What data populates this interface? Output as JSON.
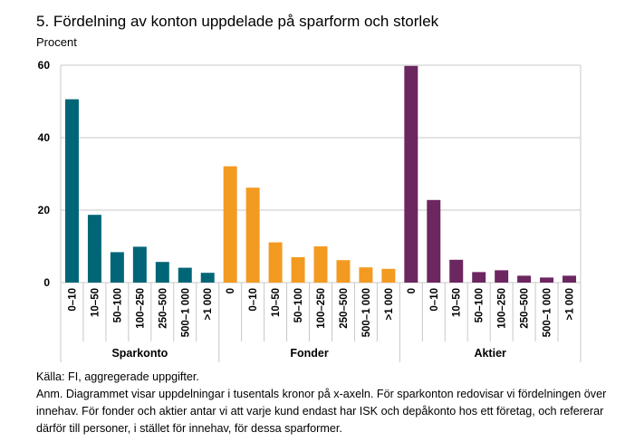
{
  "title": "5. Fördelning av konton uppdelade på sparform och storlek",
  "chart_data": {
    "type": "bar",
    "title": "5. Fördelning av konton uppdelade på sparform och storlek",
    "ylabel": "Procent",
    "ylim": [
      0,
      60
    ],
    "yticks": [
      0,
      20,
      40,
      60
    ],
    "grid": true,
    "groups": [
      {
        "name": "Sparkonto",
        "color": "#006677",
        "categories": [
          "0–10",
          "10–50",
          "50–100",
          "100–250",
          "250–500",
          "500–1 000",
          ">1 000"
        ],
        "values": [
          50.6,
          18.7,
          8.4,
          9.9,
          5.7,
          4.1,
          2.7
        ]
      },
      {
        "name": "Fonder",
        "color": "#F39A21",
        "categories": [
          "0",
          "0–10",
          "10–50",
          "50–100",
          "100–250",
          "250–500",
          "500–1 000",
          ">1 000"
        ],
        "values": [
          32.1,
          26.2,
          11.1,
          7.0,
          10.0,
          6.2,
          4.2,
          3.8
        ]
      },
      {
        "name": "Aktier",
        "color": "#6C2660",
        "categories": [
          "0",
          "0–10",
          "10–50",
          "50–100",
          "100–250",
          "250–500",
          "500–1 000",
          ">1 000"
        ],
        "values": [
          59.8,
          22.8,
          6.3,
          2.9,
          3.4,
          1.9,
          1.4,
          1.9
        ]
      }
    ]
  },
  "notes": {
    "source": "Källa: FI, aggregerade uppgifter.",
    "note": "Anm. Diagrammet visar uppdelningar i tusentals kronor på x-axeln. För sparkonton redovisar vi fördelningen över innehav. För fonder och aktier antar vi att varje kund endast har ISK och depåkonto hos ett företag, och refererar därför till personer, i stället för innehav, för dessa sparformer."
  }
}
